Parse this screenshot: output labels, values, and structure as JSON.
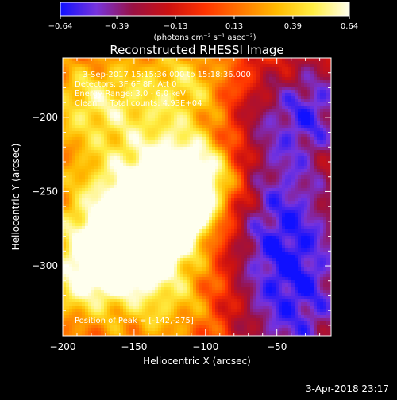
{
  "chart_data": {
    "type": "heatmap",
    "title": "Reconstructed RHESSI Image",
    "xlabel": "Heliocentric X (arcsec)",
    "ylabel": "Heliocentric Y (arcsec)",
    "xlim": [
      -200,
      -12
    ],
    "ylim": [
      -347,
      -160
    ],
    "x_ticks": [
      -200,
      -150,
      -100,
      -50
    ],
    "x_tick_labels": [
      "−200",
      "−150",
      "−100",
      "−50"
    ],
    "y_ticks": [
      -200,
      -250,
      -300
    ],
    "y_tick_labels": [
      "−200",
      "−250",
      "−300"
    ],
    "colorbar": {
      "range": [
        -0.64,
        0.64
      ],
      "ticks": [
        -0.64,
        -0.39,
        -0.13,
        0.13,
        0.39,
        0.64
      ],
      "tick_labels": [
        "−0.64",
        "−0.39",
        "−0.13",
        "0.13",
        "0.39",
        "0.64"
      ],
      "unit_label": "(photons cm⁻² s⁻¹ asec⁻²)",
      "colors": [
        "#1010ff",
        "#7733dd",
        "#991144",
        "#cc1111",
        "#ff3300",
        "#ff7700",
        "#ffbb00",
        "#ffee44",
        "#ffffee"
      ]
    },
    "annotations": [
      "3-Sep-2017 15:15:36.000 to 15:18:36.000",
      "Detectors: 3F 6F 8F, Att 0",
      "Energy Range: 3.0 - 6.0 keV",
      "Clean     Total counts: 4.93E+04"
    ],
    "peak_label": "Position of Peak = [-142,-275]",
    "peak": {
      "x": -142,
      "y": -275,
      "value": 0.64
    },
    "features": [
      {
        "x": -142,
        "y": -275,
        "amp": 1.15,
        "sx": 38,
        "sy": 16,
        "angle": 38
      },
      {
        "x": -135,
        "y": -255,
        "amp": 0.55,
        "sx": 55,
        "sy": 30,
        "angle": 35
      },
      {
        "x": -110,
        "y": -235,
        "amp": 0.25,
        "sx": 60,
        "sy": 40,
        "angle": 30
      },
      {
        "x": -180,
        "y": -190,
        "amp": 0.35,
        "sx": 25,
        "sy": 20,
        "angle": 0
      },
      {
        "x": -110,
        "y": -175,
        "amp": 0.3,
        "sx": 30,
        "sy": 18,
        "angle": 0
      },
      {
        "x": -125,
        "y": -320,
        "amp": 0.3,
        "sx": 30,
        "sy": 25,
        "angle": 0
      },
      {
        "x": -45,
        "y": -290,
        "amp": -0.75,
        "sx": 35,
        "sy": 75,
        "angle": 10
      },
      {
        "x": -65,
        "y": -205,
        "amp": -0.35,
        "sx": 25,
        "sy": 30,
        "angle": 0
      },
      {
        "x": -20,
        "y": -190,
        "amp": -0.45,
        "sx": 20,
        "sy": 25,
        "angle": 0
      }
    ],
    "baseline": 0.08,
    "grid": false
  },
  "footer": {
    "date_label": "3-Apr-2018 23:17"
  }
}
